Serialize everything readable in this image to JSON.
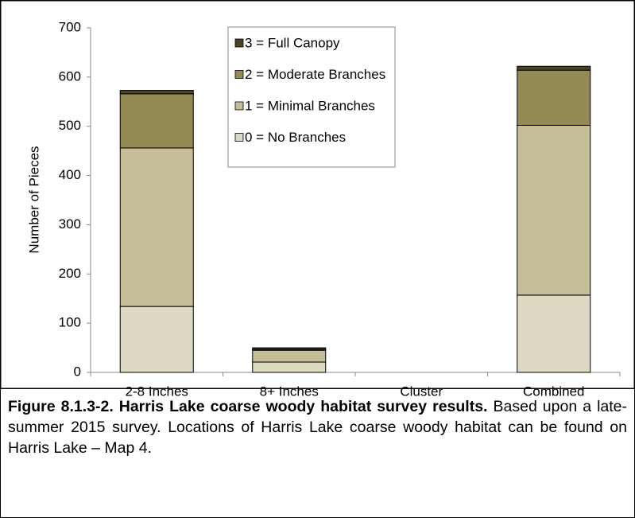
{
  "chart_data": {
    "type": "stacked_bar",
    "y_label": "Number of Pieces",
    "categories": [
      "2-8 Inches",
      "8+ Inches",
      "Cluster",
      "Combined"
    ],
    "series": [
      {
        "name": "0 = No Branches",
        "color": "#ddd9c3",
        "values": [
          134,
          21,
          0,
          157
        ]
      },
      {
        "name": "1 = Minimal Branches",
        "color": "#c4bd97",
        "values": [
          322,
          24,
          0,
          345
        ]
      },
      {
        "name": "2 = Moderate Branches",
        "color": "#948a54",
        "values": [
          110,
          2,
          0,
          112
        ]
      },
      {
        "name": "3 = Full Canopy",
        "color": "#4a452a",
        "values": [
          7,
          3,
          0,
          8
        ]
      }
    ],
    "ylim": [
      0,
      700
    ],
    "yticks": [
      0,
      100,
      200,
      300,
      400,
      500,
      600,
      700
    ]
  },
  "caption": {
    "title": "Figure 8.1.3-2.  Harris Lake coarse woody habitat survey results.",
    "text": "Based upon a late-summer 2015 survey.  Locations of Harris Lake coarse woody habitat can be found on Harris Lake – Map 4."
  }
}
